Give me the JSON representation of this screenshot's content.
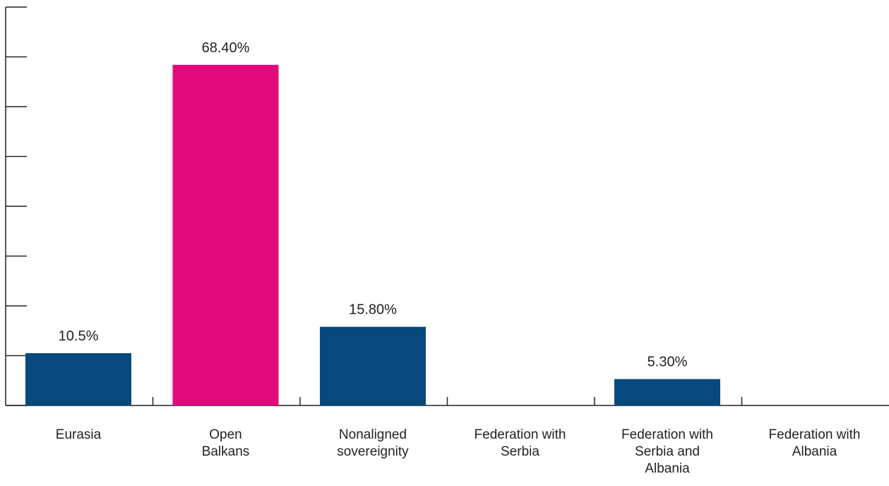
{
  "chart_data": {
    "type": "bar",
    "categories": [
      "Eurasia",
      "Open\nBalkans",
      "Nonaligned\nsovereignity",
      "Federation with\nSerbia",
      "Federation with\nSerbia and\nAlbania",
      "Federation with\nAlbania"
    ],
    "values": [
      10.5,
      68.4,
      15.8,
      0,
      5.3,
      0
    ],
    "value_labels": [
      "10.5%",
      "68.40%",
      "15.80%",
      null,
      "5.30%",
      null
    ],
    "colors": [
      "#064a7d",
      "#e3097a",
      "#064a7d",
      "#064a7d",
      "#064a7d",
      "#064a7d"
    ],
    "ylim": [
      0,
      80
    ],
    "yticks": [
      0,
      10,
      20,
      30,
      40,
      50,
      60,
      70,
      80
    ]
  }
}
